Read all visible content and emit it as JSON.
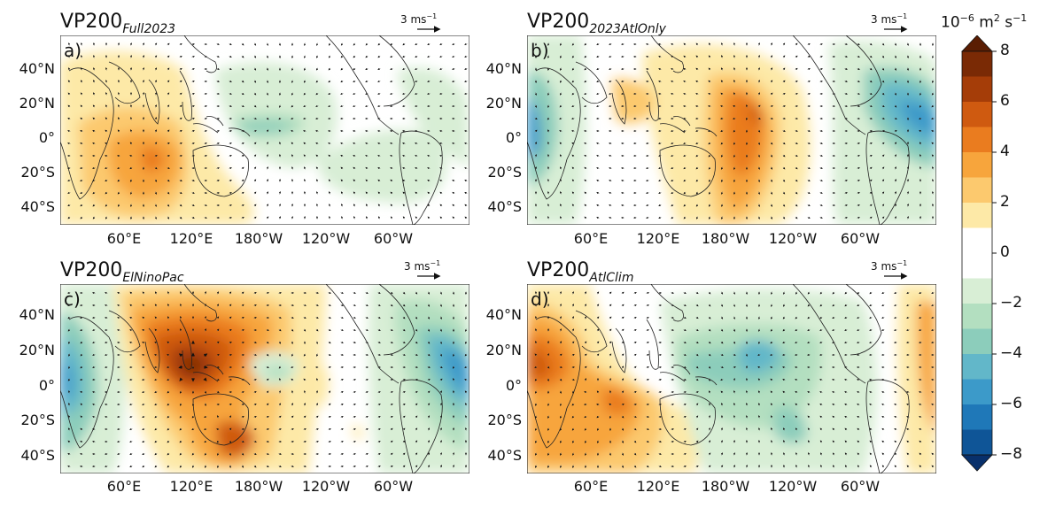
{
  "panels": [
    {
      "id": "a",
      "title_main": "VP200",
      "title_sub": "Full2023",
      "label": "a)",
      "scale_text": "3 ms",
      "scale_exp": "−1"
    },
    {
      "id": "b",
      "title_main": "VP200",
      "title_sub": "2023AtlOnly",
      "label": "b)",
      "scale_text": "3 ms",
      "scale_exp": "−1"
    },
    {
      "id": "c",
      "title_main": "VP200",
      "title_sub": "ElNinoPac",
      "label": "c)",
      "scale_text": "3 ms",
      "scale_exp": "−1"
    },
    {
      "id": "d",
      "title_main": "VP200",
      "title_sub": "AtlClim",
      "label": "d)",
      "scale_text": "3 ms",
      "scale_exp": "−1"
    }
  ],
  "lat_ticks": [
    "40°N",
    "20°N",
    "0°",
    "20°S",
    "40°S"
  ],
  "lon_ticks": [
    "60°E",
    "120°E",
    "180°W",
    "120°W",
    "60°W"
  ],
  "colorbar": {
    "title_prefix": "10",
    "title_exp": "−6",
    "title_unit1": " m",
    "title_unit1_exp": "2",
    "title_unit2": " s",
    "title_unit2_exp": "−1",
    "ticks": [
      "8",
      "6",
      "4",
      "2",
      "0",
      "−2",
      "−4",
      "−6",
      "−8"
    ],
    "colors": [
      "#7a2a05",
      "#a53d08",
      "#cf5a10",
      "#ea7c1f",
      "#f7a53c",
      "#fcc96e",
      "#fde9a7",
      "#ffffff",
      "#ffffff",
      "#d8eed5",
      "#b3dfc0",
      "#8ccdbb",
      "#62b7c9",
      "#3c9ac9",
      "#1f78b8",
      "#0f5597"
    ]
  }
}
